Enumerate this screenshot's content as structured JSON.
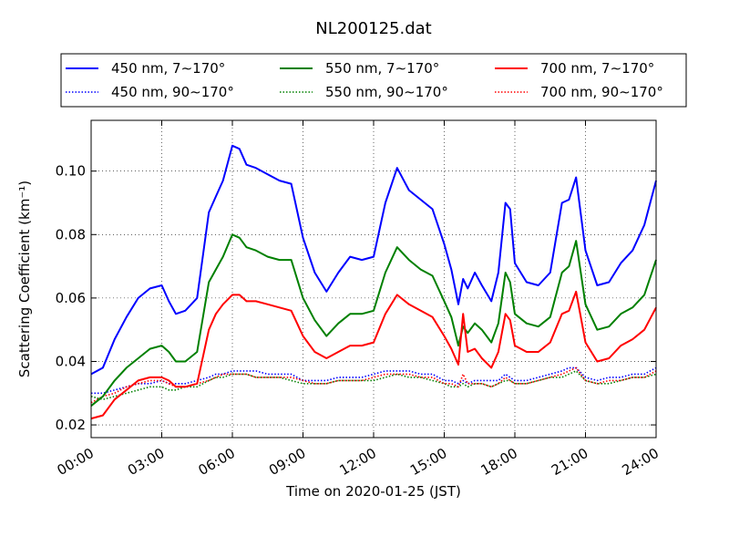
{
  "chart_data": {
    "type": "line",
    "title": "NL200125.dat",
    "xlabel": "Time on 2020-01-25 (JST)",
    "ylabel": "Scattering Coefficient (km⁻¹)",
    "xlim": [
      0,
      24
    ],
    "ylim": [
      0.016,
      0.116
    ],
    "x_ticks": [
      0,
      3,
      6,
      9,
      12,
      15,
      18,
      21,
      24
    ],
    "x_tick_labels": [
      "00:00",
      "03:00",
      "06:00",
      "09:00",
      "12:00",
      "15:00",
      "18:00",
      "21:00",
      "24:00"
    ],
    "y_ticks": [
      0.02,
      0.04,
      0.06,
      0.08,
      0.1
    ],
    "y_tick_labels": [
      "0.02",
      "0.04",
      "0.06",
      "0.08",
      "0.10"
    ],
    "grid": true,
    "legend_position": "top, above plot, 3 columns",
    "x": [
      0,
      0.5,
      1,
      1.5,
      2,
      2.5,
      3,
      3.3,
      3.6,
      4,
      4.5,
      5,
      5.3,
      5.6,
      6,
      6.3,
      6.6,
      7,
      7.5,
      8,
      8.5,
      9,
      9.5,
      10,
      10.5,
      11,
      11.5,
      12,
      12.5,
      13,
      13.5,
      14,
      14.5,
      15,
      15.3,
      15.6,
      15.8,
      16,
      16.3,
      16.6,
      17,
      17.3,
      17.6,
      17.8,
      18,
      18.5,
      19,
      19.5,
      20,
      20.3,
      20.6,
      21,
      21.5,
      22,
      22.5,
      23,
      23.5,
      24
    ],
    "series": [
      {
        "name": "450 nm, 7∼170°",
        "color": "#0000ff",
        "style": "solid",
        "values": [
          0.036,
          0.038,
          0.047,
          0.054,
          0.06,
          0.063,
          0.064,
          0.059,
          0.055,
          0.056,
          0.06,
          0.087,
          0.092,
          0.097,
          0.108,
          0.107,
          0.102,
          0.101,
          0.099,
          0.097,
          0.096,
          0.079,
          0.068,
          0.062,
          0.068,
          0.073,
          0.072,
          0.073,
          0.09,
          0.101,
          0.094,
          0.091,
          0.088,
          0.077,
          0.069,
          0.058,
          0.066,
          0.063,
          0.068,
          0.064,
          0.059,
          0.068,
          0.09,
          0.088,
          0.071,
          0.065,
          0.064,
          0.068,
          0.09,
          0.091,
          0.098,
          0.075,
          0.064,
          0.065,
          0.071,
          0.075,
          0.083,
          0.097
        ]
      },
      {
        "name": "550 nm, 7∼170°",
        "color": "#008000",
        "style": "solid",
        "values": [
          0.026,
          0.029,
          0.034,
          0.038,
          0.041,
          0.044,
          0.045,
          0.043,
          0.04,
          0.04,
          0.043,
          0.065,
          0.069,
          0.073,
          0.08,
          0.079,
          0.076,
          0.075,
          0.073,
          0.072,
          0.072,
          0.06,
          0.053,
          0.048,
          0.052,
          0.055,
          0.055,
          0.056,
          0.068,
          0.076,
          0.072,
          0.069,
          0.067,
          0.059,
          0.054,
          0.045,
          0.051,
          0.049,
          0.052,
          0.05,
          0.046,
          0.052,
          0.068,
          0.065,
          0.055,
          0.052,
          0.051,
          0.054,
          0.068,
          0.07,
          0.078,
          0.058,
          0.05,
          0.051,
          0.055,
          0.057,
          0.061,
          0.072
        ]
      },
      {
        "name": "700 nm, 7∼170°",
        "color": "#ff0000",
        "style": "solid",
        "values": [
          0.022,
          0.023,
          0.028,
          0.031,
          0.034,
          0.035,
          0.035,
          0.034,
          0.032,
          0.032,
          0.033,
          0.05,
          0.055,
          0.058,
          0.061,
          0.061,
          0.059,
          0.059,
          0.058,
          0.057,
          0.056,
          0.048,
          0.043,
          0.041,
          0.043,
          0.045,
          0.045,
          0.046,
          0.055,
          0.061,
          0.058,
          0.056,
          0.054,
          0.048,
          0.044,
          0.039,
          0.055,
          0.043,
          0.044,
          0.041,
          0.038,
          0.043,
          0.055,
          0.053,
          0.045,
          0.043,
          0.043,
          0.046,
          0.055,
          0.056,
          0.062,
          0.046,
          0.04,
          0.041,
          0.045,
          0.047,
          0.05,
          0.057
        ]
      },
      {
        "name": "450 nm, 90∼170°",
        "color": "#0000ff",
        "style": "dotted",
        "values": [
          0.03,
          0.03,
          0.031,
          0.032,
          0.033,
          0.033,
          0.034,
          0.033,
          0.033,
          0.033,
          0.034,
          0.035,
          0.036,
          0.036,
          0.037,
          0.037,
          0.037,
          0.037,
          0.036,
          0.036,
          0.036,
          0.034,
          0.034,
          0.034,
          0.035,
          0.035,
          0.035,
          0.036,
          0.037,
          0.037,
          0.037,
          0.036,
          0.036,
          0.034,
          0.034,
          0.033,
          0.034,
          0.033,
          0.034,
          0.034,
          0.034,
          0.034,
          0.036,
          0.035,
          0.034,
          0.034,
          0.035,
          0.036,
          0.037,
          0.038,
          0.038,
          0.035,
          0.034,
          0.035,
          0.035,
          0.036,
          0.036,
          0.038
        ]
      },
      {
        "name": "550 nm, 90∼170°",
        "color": "#008000",
        "style": "dotted",
        "values": [
          0.029,
          0.028,
          0.029,
          0.03,
          0.031,
          0.032,
          0.032,
          0.031,
          0.031,
          0.032,
          0.032,
          0.034,
          0.035,
          0.035,
          0.036,
          0.036,
          0.036,
          0.035,
          0.035,
          0.035,
          0.034,
          0.033,
          0.033,
          0.033,
          0.034,
          0.034,
          0.034,
          0.034,
          0.035,
          0.036,
          0.035,
          0.035,
          0.034,
          0.033,
          0.032,
          0.032,
          0.033,
          0.032,
          0.033,
          0.033,
          0.032,
          0.033,
          0.034,
          0.034,
          0.033,
          0.033,
          0.034,
          0.035,
          0.035,
          0.036,
          0.037,
          0.034,
          0.033,
          0.033,
          0.034,
          0.035,
          0.035,
          0.036
        ]
      },
      {
        "name": "700 nm, 90∼170°",
        "color": "#ff0000",
        "style": "dotted",
        "values": [
          0.027,
          0.029,
          0.03,
          0.032,
          0.033,
          0.034,
          0.034,
          0.033,
          0.032,
          0.032,
          0.033,
          0.034,
          0.035,
          0.036,
          0.036,
          0.036,
          0.036,
          0.035,
          0.035,
          0.035,
          0.035,
          0.034,
          0.033,
          0.033,
          0.034,
          0.034,
          0.034,
          0.035,
          0.036,
          0.036,
          0.036,
          0.035,
          0.035,
          0.033,
          0.033,
          0.032,
          0.036,
          0.033,
          0.033,
          0.033,
          0.032,
          0.033,
          0.035,
          0.034,
          0.033,
          0.033,
          0.034,
          0.035,
          0.036,
          0.037,
          0.038,
          0.034,
          0.033,
          0.034,
          0.034,
          0.035,
          0.035,
          0.037
        ]
      }
    ]
  }
}
